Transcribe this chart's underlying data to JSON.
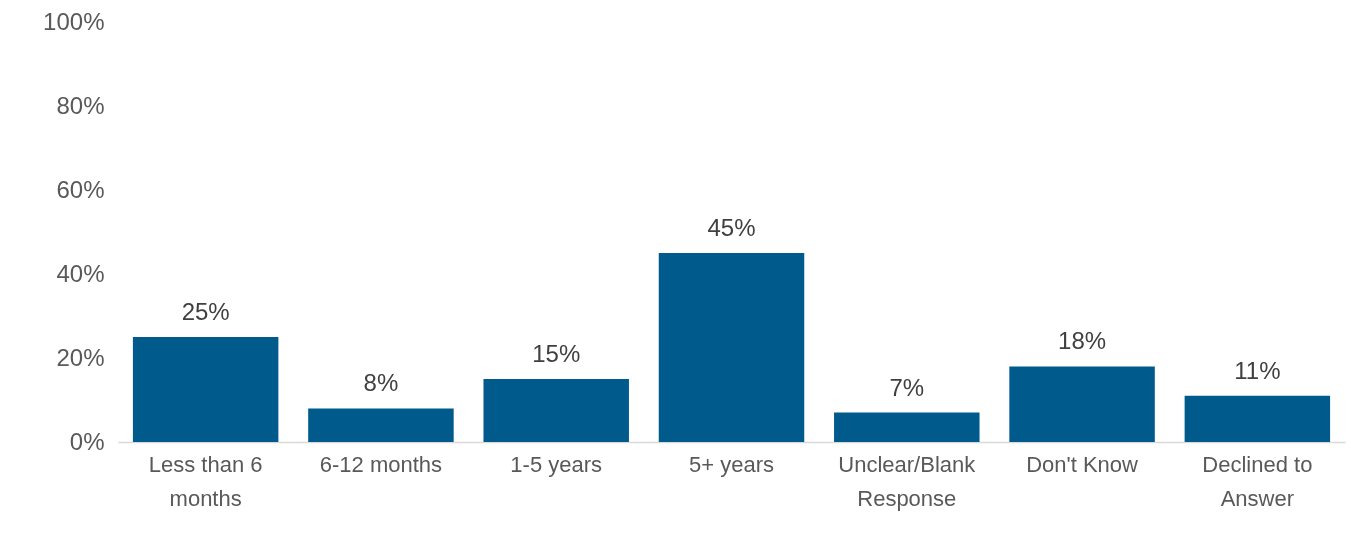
{
  "chart_data": {
    "type": "bar",
    "categories": [
      "Less than 6 months",
      "6-12 months",
      "1-5 years",
      "5+ years",
      "Unclear/Blank Response",
      "Don't Know",
      "Declined to Answer"
    ],
    "values": [
      25,
      8,
      15,
      45,
      7,
      18,
      11
    ],
    "value_labels": [
      "25%",
      "8%",
      "15%",
      "45%",
      "7%",
      "18%",
      "11%"
    ],
    "color": "#005a8c",
    "ylim": [
      0,
      100
    ],
    "yticks": [
      {
        "value": 0,
        "label": "0%"
      },
      {
        "value": 20,
        "label": "20%"
      },
      {
        "value": 40,
        "label": "40%"
      },
      {
        "value": 60,
        "label": "60%"
      },
      {
        "value": 80,
        "label": "80%"
      },
      {
        "value": 100,
        "label": "100%"
      }
    ],
    "grid": false
  }
}
